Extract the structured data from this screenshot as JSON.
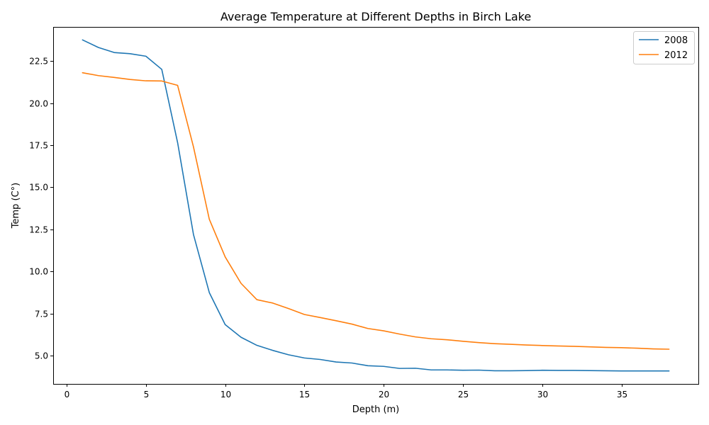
{
  "chart_data": {
    "type": "line",
    "title": "Average Temperature at Different Depths in Birch Lake",
    "xlabel": "Depth (m)",
    "ylabel": "Temp (C°)",
    "xlim": [
      -0.85,
      39.85
    ],
    "ylim": [
      3.33,
      24.52
    ],
    "xticks": [
      0,
      5,
      10,
      15,
      20,
      25,
      30,
      35
    ],
    "xtick_labels": [
      "0",
      "5",
      "10",
      "15",
      "20",
      "25",
      "30",
      "35"
    ],
    "yticks": [
      5.0,
      7.5,
      10.0,
      12.5,
      15.0,
      17.5,
      20.0,
      22.5
    ],
    "ytick_labels": [
      "5.0",
      "7.5",
      "10.0",
      "12.5",
      "15.0",
      "17.5",
      "20.0",
      "22.5"
    ],
    "grid": false,
    "legend_position": "top-right",
    "x": [
      1,
      2,
      3,
      4,
      5,
      6,
      7,
      8,
      9,
      10,
      11,
      12,
      13,
      14,
      15,
      16,
      17,
      18,
      19,
      20,
      21,
      22,
      23,
      24,
      25,
      26,
      27,
      28,
      29,
      30,
      31,
      32,
      33,
      34,
      35,
      36,
      37,
      38
    ],
    "series": [
      {
        "name": "2008",
        "color": "#1f77b4",
        "values": [
          23.75,
          23.3,
          23.0,
          22.93,
          22.78,
          22.0,
          17.65,
          12.2,
          8.75,
          6.85,
          6.1,
          5.62,
          5.32,
          5.06,
          4.87,
          4.78,
          4.63,
          4.57,
          4.41,
          4.37,
          4.25,
          4.26,
          4.16,
          4.16,
          4.14,
          4.15,
          4.11,
          4.11,
          4.12,
          4.14,
          4.13,
          4.13,
          4.12,
          4.11,
          4.1,
          4.1,
          4.1,
          4.1
        ]
      },
      {
        "name": "2012",
        "color": "#ff7f0e",
        "values": [
          21.8,
          21.63,
          21.52,
          21.4,
          21.32,
          21.31,
          21.05,
          17.4,
          13.1,
          10.87,
          9.3,
          8.33,
          8.13,
          7.8,
          7.45,
          7.27,
          7.08,
          6.88,
          6.62,
          6.48,
          6.29,
          6.12,
          6.01,
          5.95,
          5.86,
          5.78,
          5.72,
          5.68,
          5.64,
          5.61,
          5.58,
          5.56,
          5.53,
          5.5,
          5.48,
          5.45,
          5.41,
          5.39
        ]
      }
    ]
  }
}
